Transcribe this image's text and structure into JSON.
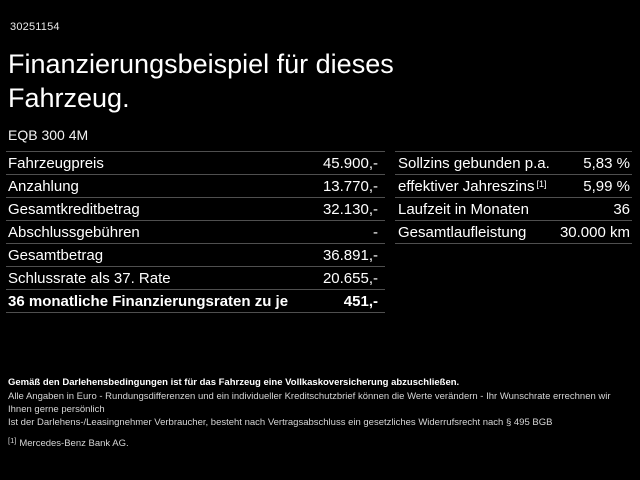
{
  "vehicle_id": "30251154",
  "title": "Finanzierungsbeispiel für dieses Fahrzeug.",
  "model": "EQB 300 4M",
  "left_table": {
    "rows": [
      {
        "label": "Fahrzeugpreis",
        "value": "45.900,-"
      },
      {
        "label": "Anzahlung",
        "value": "13.770,-"
      },
      {
        "label": "Gesamtkreditbetrag",
        "value": "32.130,-"
      },
      {
        "label": "Abschlussgebühren",
        "value": "-"
      },
      {
        "label": "Gesamtbetrag",
        "value": "36.891,-"
      },
      {
        "label": "Schlussrate als 37. Rate",
        "value": "20.655,-"
      },
      {
        "label": "36 monatliche Finanzierungsraten zu je",
        "value": "451,-"
      }
    ]
  },
  "right_table": {
    "rows": [
      {
        "label": "Sollzins gebunden p.a.",
        "value": "5,83 %"
      },
      {
        "label": "effektiver Jahreszins",
        "sup": "[1]",
        "value": "5,99 %"
      },
      {
        "label": "Laufzeit in Monaten",
        "value": "36"
      },
      {
        "label": "Gesamtlaufleistung",
        "value": "30.000 km"
      }
    ]
  },
  "footnotes": {
    "insurance_note": "Gemäß den Darlehensbedingungen ist für das Fahrzeug eine Vollkaskoversicherung abzuschließen.",
    "values_note": "Alle Angaben in Euro - Rundungsdifferenzen und ein individueller Kreditschutzbrief können die Werte verändern - Ihr Wunschrate errechnen wir Ihnen gerne persönlich",
    "withdrawal_note": "Ist der Darlehens-/Leasingnehmer Verbraucher, besteht nach Vertragsabschluss ein gesetzliches Widerrufsrecht nach § 495 BGB",
    "reference_marker": "[1]",
    "reference_text": "Mercedes-Benz Bank AG."
  },
  "colors": {
    "background": "#000000",
    "text": "#ffffff",
    "divider": "#4f4f4f"
  }
}
